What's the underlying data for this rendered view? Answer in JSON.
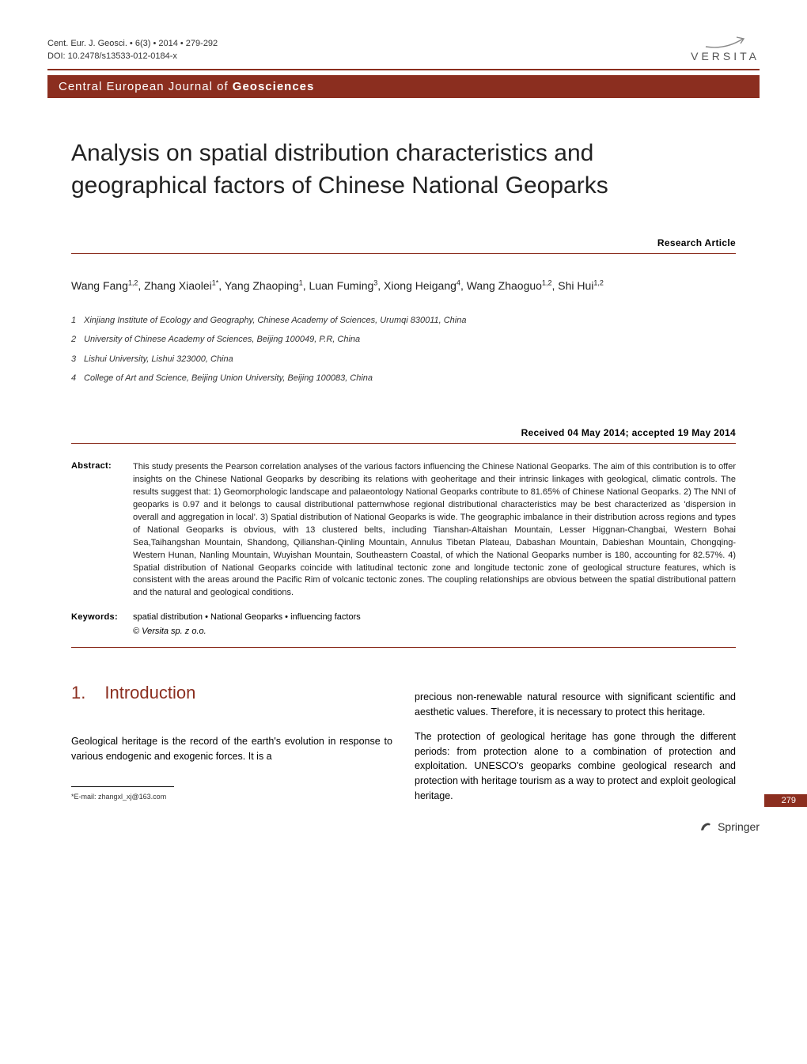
{
  "header": {
    "citation_line1": "Cent. Eur. J. Geosci. • 6(3) • 2014 • 279-292",
    "citation_line2": "DOI: 10.2478/s13533-012-0184-x",
    "publisher_logo_text": "VERSITA"
  },
  "journal_bar": {
    "prefix": "Central European Journal of ",
    "bold": "Geosciences"
  },
  "title": "Analysis on spatial distribution characteristics and geographical factors of Chinese National Geoparks",
  "article_type": "Research Article",
  "authors_html": "Wang Fang<sup>1,2</sup>, Zhang Xiaolei<sup>1*</sup>, Yang Zhaoping<sup>1</sup>, Luan Fuming<sup>3</sup>, Xiong Heigang<sup>4</sup>, Wang Zhaoguo<sup>1,2</sup>, Shi Hui<sup>1,2</sup>",
  "affiliations": [
    {
      "n": "1",
      "text": "Xinjiang Institute of Ecology and Geography, Chinese Academy of Sciences, Urumqi 830011, China"
    },
    {
      "n": "2",
      "text": "University of Chinese Academy of Sciences, Beijing 100049, P.R, China"
    },
    {
      "n": "3",
      "text": "Lishui University, Lishui 323000, China"
    },
    {
      "n": "4",
      "text": "College of Art and Science, Beijing Union University, Beijing 100083, China"
    }
  ],
  "dates": "Received 04 May 2014; accepted 19 May 2014",
  "abstract_label": "Abstract:",
  "abstract": "This study presents the Pearson correlation analyses of the various factors influencing the Chinese National Geoparks. The aim of this contribution is to offer insights on the Chinese National Geoparks by describing its relations with geoheritage and their intrinsic linkages with geological, climatic controls. The results suggest that: 1) Geomorphologic landscape and palaeontology National Geoparks contribute to 81.65% of Chinese National Geoparks. 2) The NNI of geoparks is 0.97 and it belongs to causal distributional patternwhose regional distributional characteristics may be best characterized as 'dispersion in overall and aggregation in local'. 3) Spatial distribution of National Geoparks is wide. The geographic imbalance in their distribution across regions and types of National Geoparks is obvious, with 13 clustered belts, including Tianshan-Altaishan Mountain, Lesser Higgnan-Changbai, Western Bohai Sea,Taihangshan Mountain, Shandong, Qilianshan-Qinling Mountain, Annulus Tibetan Plateau, Dabashan Mountain, Dabieshan Mountain, Chongqing- Western Hunan, Nanling Mountain, Wuyishan Mountain, Southeastern Coastal, of which the National Geoparks number is 180, accounting for 82.57%. 4) Spatial distribution of National Geoparks coincide with latitudinal tectonic zone and longitude tectonic zone of geological structure features, which is consistent with the areas around the Pacific Rim of volcanic tectonic zones. The coupling relationships are obvious between the spatial distributional pattern and the natural and geological conditions.",
  "keywords_label": "Keywords:",
  "keywords": "spatial distribution • National Geoparks • influencing factors",
  "copyright": "© Versita sp. z o.o.",
  "section1": {
    "number": "1.",
    "title": "Introduction"
  },
  "body": {
    "col1_p1": "Geological heritage is the record of the earth's evolution in response to various endogenic and exogenic forces. It is a",
    "col2_p1": "precious non-renewable natural resource with significant scientific and aesthetic values. Therefore, it is necessary to protect this heritage.",
    "col2_p2": "The protection of geological heritage has gone through the different periods: from protection alone to a combination of protection and exploitation. UNESCO's geoparks combine geological research and protection with heritage tourism as a way to protect and exploit geological heritage."
  },
  "footnote": "*E-mail: zhangxl_xj@163.com",
  "page_number": "279",
  "springer": "Springer",
  "colors": {
    "brand": "#8b2e1f",
    "text": "#222222",
    "muted": "#555555"
  }
}
